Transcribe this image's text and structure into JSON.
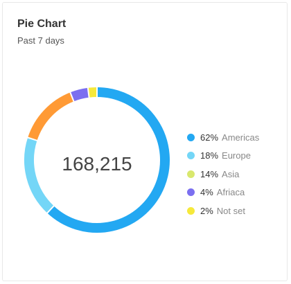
{
  "card": {
    "title": "Pie Chart",
    "subtitle": "Past 7 days"
  },
  "chart_data": {
    "type": "pie",
    "style": "donut",
    "title": "Pie Chart",
    "subtitle": "Past 7 days",
    "center_label": "168,215",
    "legend_position": "right",
    "slices": [
      {
        "label": "Americas",
        "percent_label": "62%",
        "value": 62,
        "color": "#23a8f2"
      },
      {
        "label": "Europe",
        "percent_label": "18%",
        "value": 18,
        "color": "#74d6f7"
      },
      {
        "label": "Asia",
        "percent_label": "14%",
        "value": 14,
        "color": "#ff9a35"
      },
      {
        "label": "Afriaca",
        "percent_label": "4%",
        "value": 4,
        "color": "#7b6ff0"
      },
      {
        "label": "Not set",
        "percent_label": "2%",
        "value": 2,
        "color": "#f6e93b"
      }
    ],
    "legend": [
      {
        "percent_label": "62%",
        "label": "Americas",
        "color": "#23a8f2"
      },
      {
        "percent_label": "18%",
        "label": "Europe",
        "color": "#74d6f7"
      },
      {
        "percent_label": "14%",
        "label": "Asia",
        "color": "#d9e86e"
      },
      {
        "percent_label": "4%",
        "label": "Afriaca",
        "color": "#7b6ff0"
      },
      {
        "percent_label": "2%",
        "label": "Not set",
        "color": "#f6e93b"
      }
    ]
  }
}
